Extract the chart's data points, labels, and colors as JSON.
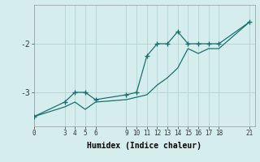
{
  "xlabel": "Humidex (Indice chaleur)",
  "background_color": "#d5eeed",
  "line_color": "#1a7070",
  "grid_color": "#b8d8d5",
  "xticks": [
    0,
    3,
    4,
    5,
    6,
    9,
    10,
    11,
    12,
    13,
    14,
    15,
    16,
    17,
    18,
    21
  ],
  "yticks": [
    -2,
    -3
  ],
  "ylim": [
    -3.7,
    -1.2
  ],
  "xlim": [
    0,
    21.5
  ],
  "line1_x": [
    0,
    3,
    4,
    5,
    6,
    9,
    10,
    11,
    12,
    13,
    14,
    15,
    16,
    17,
    18,
    21
  ],
  "line1_y": [
    -3.5,
    -3.2,
    -3.0,
    -3.0,
    -3.15,
    -3.05,
    -3.0,
    -2.25,
    -2.0,
    -2.0,
    -1.75,
    -2.0,
    -2.0,
    -2.0,
    -2.0,
    -1.55
  ],
  "line2_x": [
    0,
    3,
    4,
    5,
    6,
    9,
    10,
    11,
    12,
    13,
    14,
    15,
    16,
    17,
    18,
    21
  ],
  "line2_y": [
    -3.5,
    -3.3,
    -3.2,
    -3.35,
    -3.2,
    -3.15,
    -3.1,
    -3.05,
    -2.85,
    -2.7,
    -2.5,
    -2.1,
    -2.2,
    -2.1,
    -2.1,
    -1.55
  ]
}
